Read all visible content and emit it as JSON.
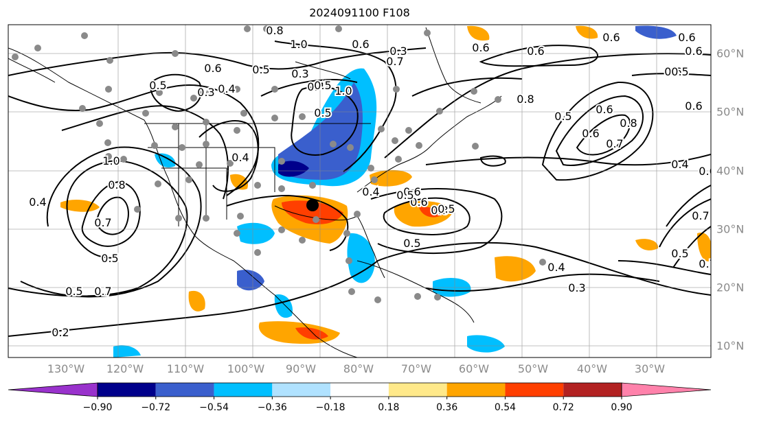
{
  "title": "2024091100 F108",
  "map": {
    "lon_labels": [
      "130°W",
      "120°W",
      "110°W",
      "100°W",
      "90°W",
      "80°W",
      "70°W",
      "60°W",
      "50°W",
      "40°W",
      "30°W"
    ],
    "lat_labels": [
      "60°N",
      "50°N",
      "40°N",
      "30°N",
      "20°N",
      "10°N"
    ],
    "extent": {
      "lon_min": -137,
      "lon_max": -25,
      "lat_min": 8,
      "lat_max": 65
    },
    "contour_labels": [
      "0.2",
      "0.3",
      "0.4",
      "0.5",
      "0.6",
      "0.7",
      "0.8",
      "1.0",
      "0.3",
      "0.5",
      "0.6",
      "0.4",
      "0.5",
      "0.6",
      "0.8",
      "0.7",
      "0.4",
      "0.5",
      "0.6",
      "0.7",
      "0.5",
      "0.4",
      "0.3",
      "0.4",
      "0.5",
      "0.8",
      "0.6",
      "0.5",
      "0.6",
      "0.5",
      "0.4",
      "0.3",
      "0.8",
      "1.0",
      "0.6",
      "0.5",
      "0.6",
      "0.6",
      "0.8",
      "0.7",
      "0.5",
      "0.6",
      "0.6",
      "0.6",
      "0.5",
      "0.4",
      "0.6",
      "0.7",
      "0.5",
      "0.7",
      "1.0",
      "0.6"
    ],
    "storm_marker": {
      "lon": -88,
      "lat": 34
    }
  },
  "colorbar": {
    "ticks": [
      "−0.90",
      "−0.72",
      "−0.54",
      "−0.36",
      "−0.18",
      "0.18",
      "0.36",
      "0.54",
      "0.72",
      "0.90"
    ],
    "colors": [
      "#9932cc",
      "#00008b",
      "#3a5fcd",
      "#00bfff",
      "#b0e2ff",
      "#ffffff",
      "#ffe98a",
      "#ffa500",
      "#ff3f00",
      "#b22222",
      "#ff82ab"
    ]
  }
}
